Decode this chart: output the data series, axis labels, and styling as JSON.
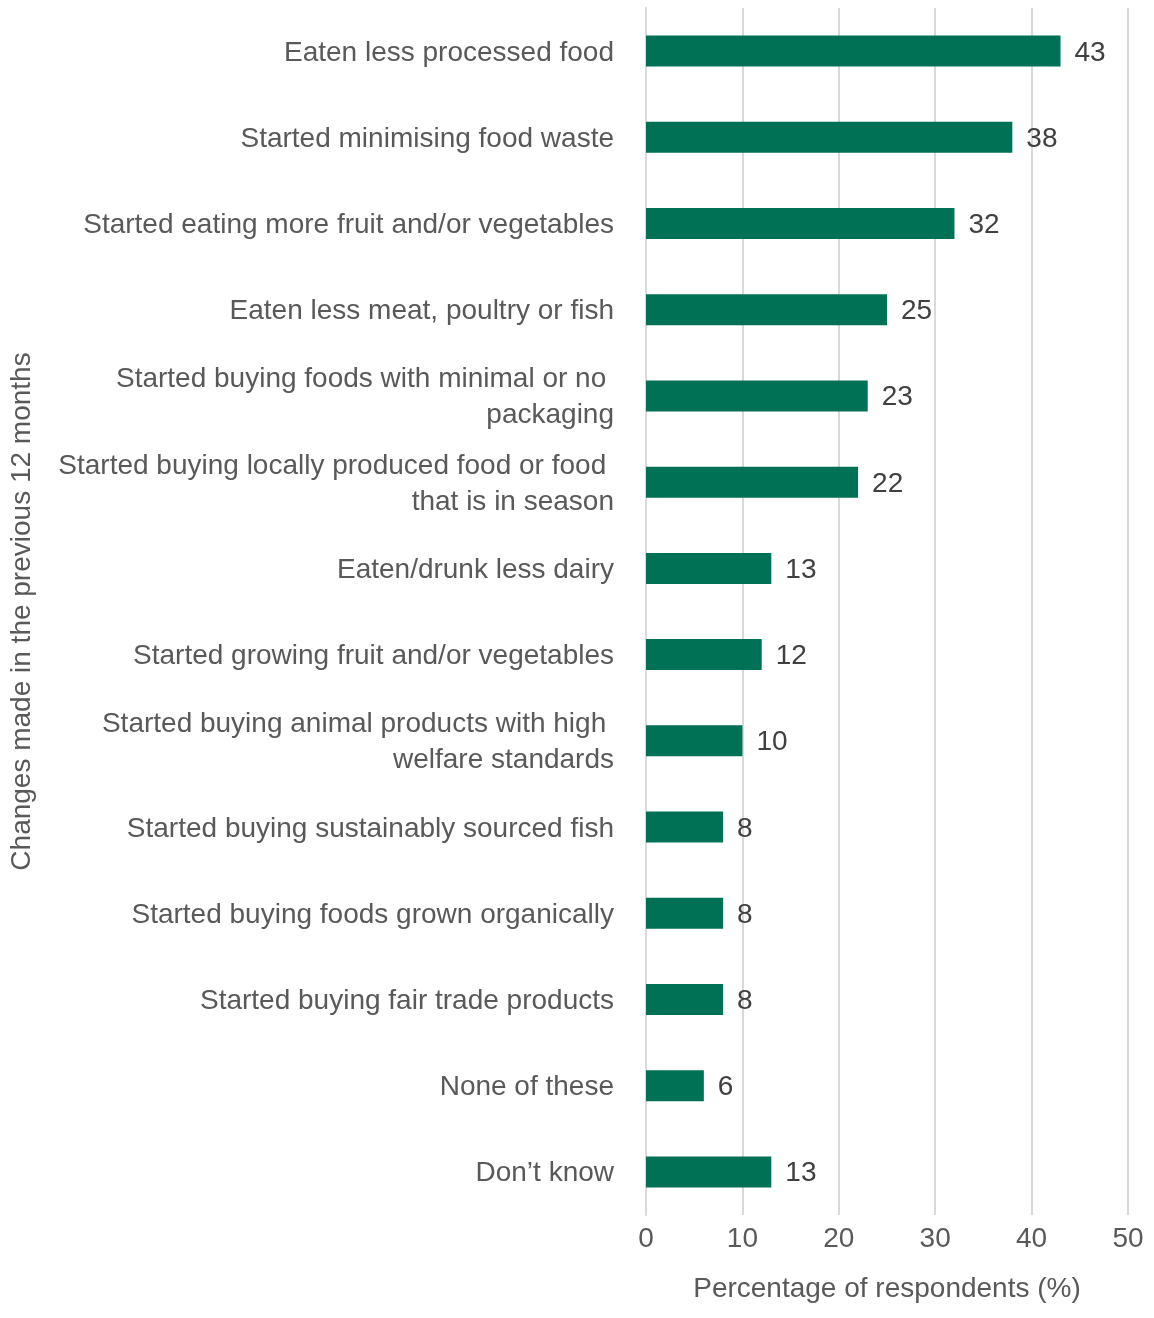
{
  "chart_data": {
    "type": "bar",
    "orientation": "horizontal",
    "xlabel": "Percentage of respondents (%)",
    "ylabel": "Changes made in the previous 12 months",
    "categories": [
      "Eaten less processed food",
      "Started minimising food waste",
      "Started eating more fruit and/or vegetables",
      "Eaten less meat, poultry or fish",
      "Started buying foods with minimal or no packaging",
      "Started buying locally produced food or food that is in season",
      "Eaten/drunk less dairy",
      "Started growing fruit and/or vegetables",
      "Started buying animal products with high welfare standards",
      "Started buying sustainably sourced fish",
      "Started buying foods grown organically",
      "Started buying fair trade products",
      "None of these",
      "Don’t know"
    ],
    "values": [
      43,
      38,
      32,
      25,
      23,
      22,
      13,
      12,
      10,
      8,
      8,
      8,
      6,
      13
    ],
    "color": "#007155",
    "xlim": [
      0,
      50
    ],
    "xticks": [
      0,
      10,
      20,
      30,
      40,
      50
    ],
    "grid": "x",
    "data_labels": true
  }
}
